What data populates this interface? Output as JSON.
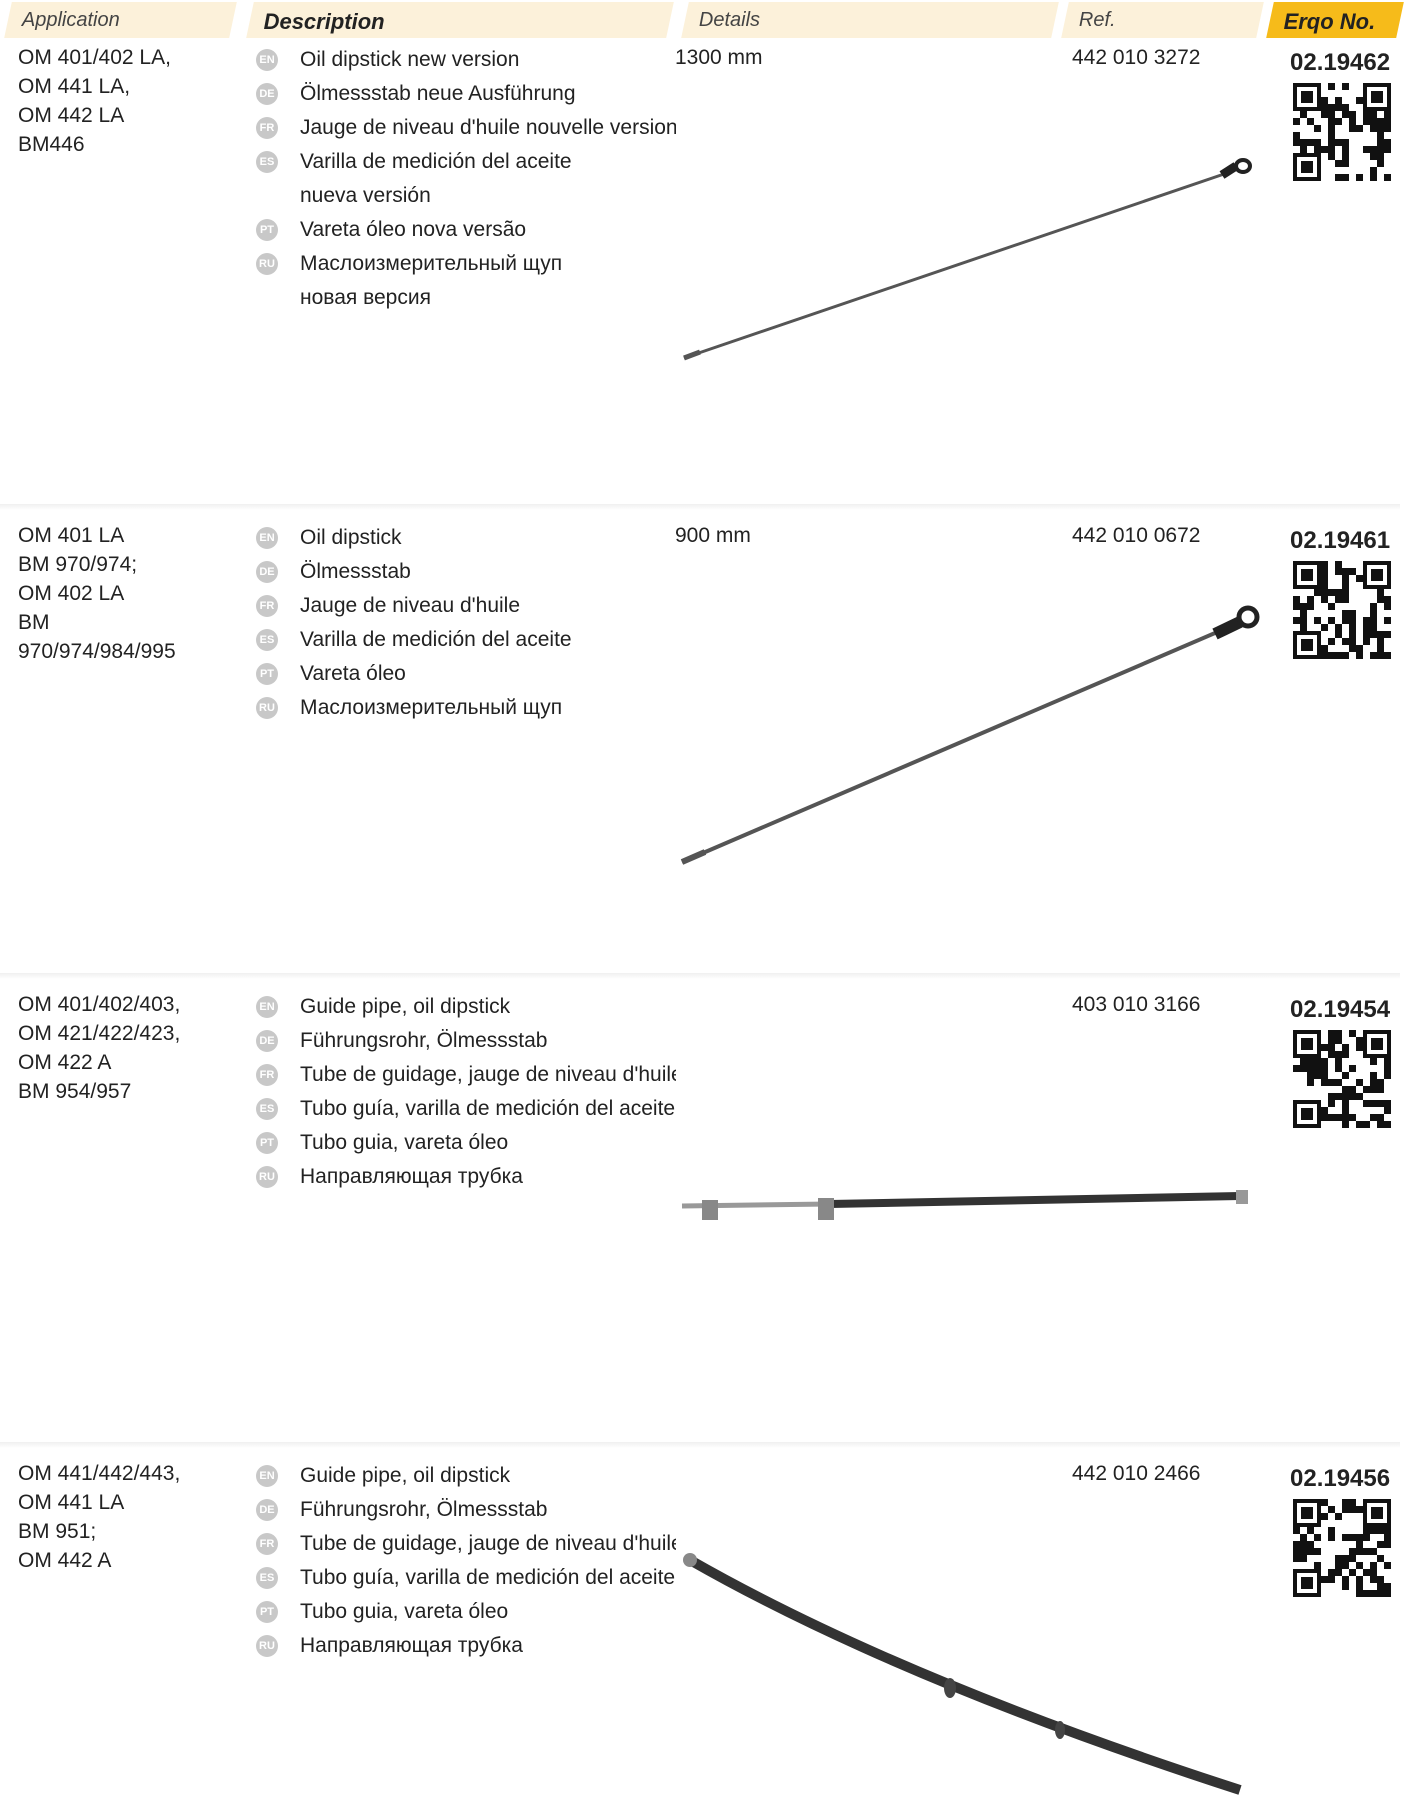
{
  "header": {
    "columns": [
      "Application",
      "Description",
      "Details",
      "Ref.",
      "Erqo No."
    ]
  },
  "products": [
    {
      "application": [
        "OM 401/402 LA,",
        "OM 441 LA,",
        "OM 442 LA",
        "BM446"
      ],
      "descriptions": [
        {
          "lang": "EN",
          "lines": [
            "Oil dipstick new version"
          ]
        },
        {
          "lang": "DE",
          "lines": [
            "Ölmessstab neue Ausführung"
          ]
        },
        {
          "lang": "FR",
          "lines": [
            "Jauge de niveau d'huile nouvelle version"
          ]
        },
        {
          "lang": "ES",
          "lines": [
            "Varilla de medición del aceite",
            "nueva versión"
          ]
        },
        {
          "lang": "PT",
          "lines": [
            "Vareta óleo nova versão"
          ]
        },
        {
          "lang": "RU",
          "lines": [
            "Маслоизмерительный щуп",
            "новая версия"
          ]
        }
      ],
      "details": "1300 mm",
      "ref": "442 010 3272",
      "erqo_no": "02.19462"
    },
    {
      "application": [
        "OM 401 LA",
        "BM 970/974;",
        "OM 402 LA",
        "BM",
        "970/974/984/995"
      ],
      "descriptions": [
        {
          "lang": "EN",
          "lines": [
            "Oil dipstick"
          ]
        },
        {
          "lang": "DE",
          "lines": [
            "Ölmessstab"
          ]
        },
        {
          "lang": "FR",
          "lines": [
            "Jauge de niveau d'huile"
          ]
        },
        {
          "lang": "ES",
          "lines": [
            "Varilla de medición del aceite"
          ]
        },
        {
          "lang": "PT",
          "lines": [
            "Vareta óleo"
          ]
        },
        {
          "lang": "RU",
          "lines": [
            "Маслоизмерительный щуп"
          ]
        }
      ],
      "details": "900 mm",
      "ref": "442 010 0672",
      "erqo_no": "02.19461"
    },
    {
      "application": [
        "OM 401/402/403,",
        "OM 421/422/423,",
        "OM 422 A",
        "BM 954/957"
      ],
      "descriptions": [
        {
          "lang": "EN",
          "lines": [
            "Guide pipe, oil dipstick"
          ]
        },
        {
          "lang": "DE",
          "lines": [
            "Führungsrohr, Ölmessstab"
          ]
        },
        {
          "lang": "FR",
          "lines": [
            "Tube de guidage, jauge de niveau d'huile"
          ]
        },
        {
          "lang": "ES",
          "lines": [
            "Tubo guía, varilla de medición del aceite"
          ]
        },
        {
          "lang": "PT",
          "lines": [
            "Tubo guia, vareta óleo"
          ]
        },
        {
          "lang": "RU",
          "lines": [
            "Направляющая трубка"
          ]
        }
      ],
      "ref": "403 010 3166",
      "erqo_no": "02.19454"
    },
    {
      "application": [
        "OM 441/442/443,",
        "OM 441 LA",
        "BM 951;",
        "OM 442 A"
      ],
      "descriptions": [
        {
          "lang": "EN",
          "lines": [
            "Guide pipe, oil dipstick"
          ]
        },
        {
          "lang": "DE",
          "lines": [
            "Führungsrohr, Ölmessstab"
          ]
        },
        {
          "lang": "FR",
          "lines": [
            "Tube de guidage, jauge de niveau d'huile"
          ]
        },
        {
          "lang": "ES",
          "lines": [
            "Tubo guía, varilla de medición del aceite"
          ]
        },
        {
          "lang": "PT",
          "lines": [
            "Tubo guia, vareta óleo"
          ]
        },
        {
          "lang": "RU",
          "lines": [
            "Направляющая трубка"
          ]
        }
      ],
      "ref": "442 010 2466",
      "erqo_no": "02.19456"
    }
  ]
}
